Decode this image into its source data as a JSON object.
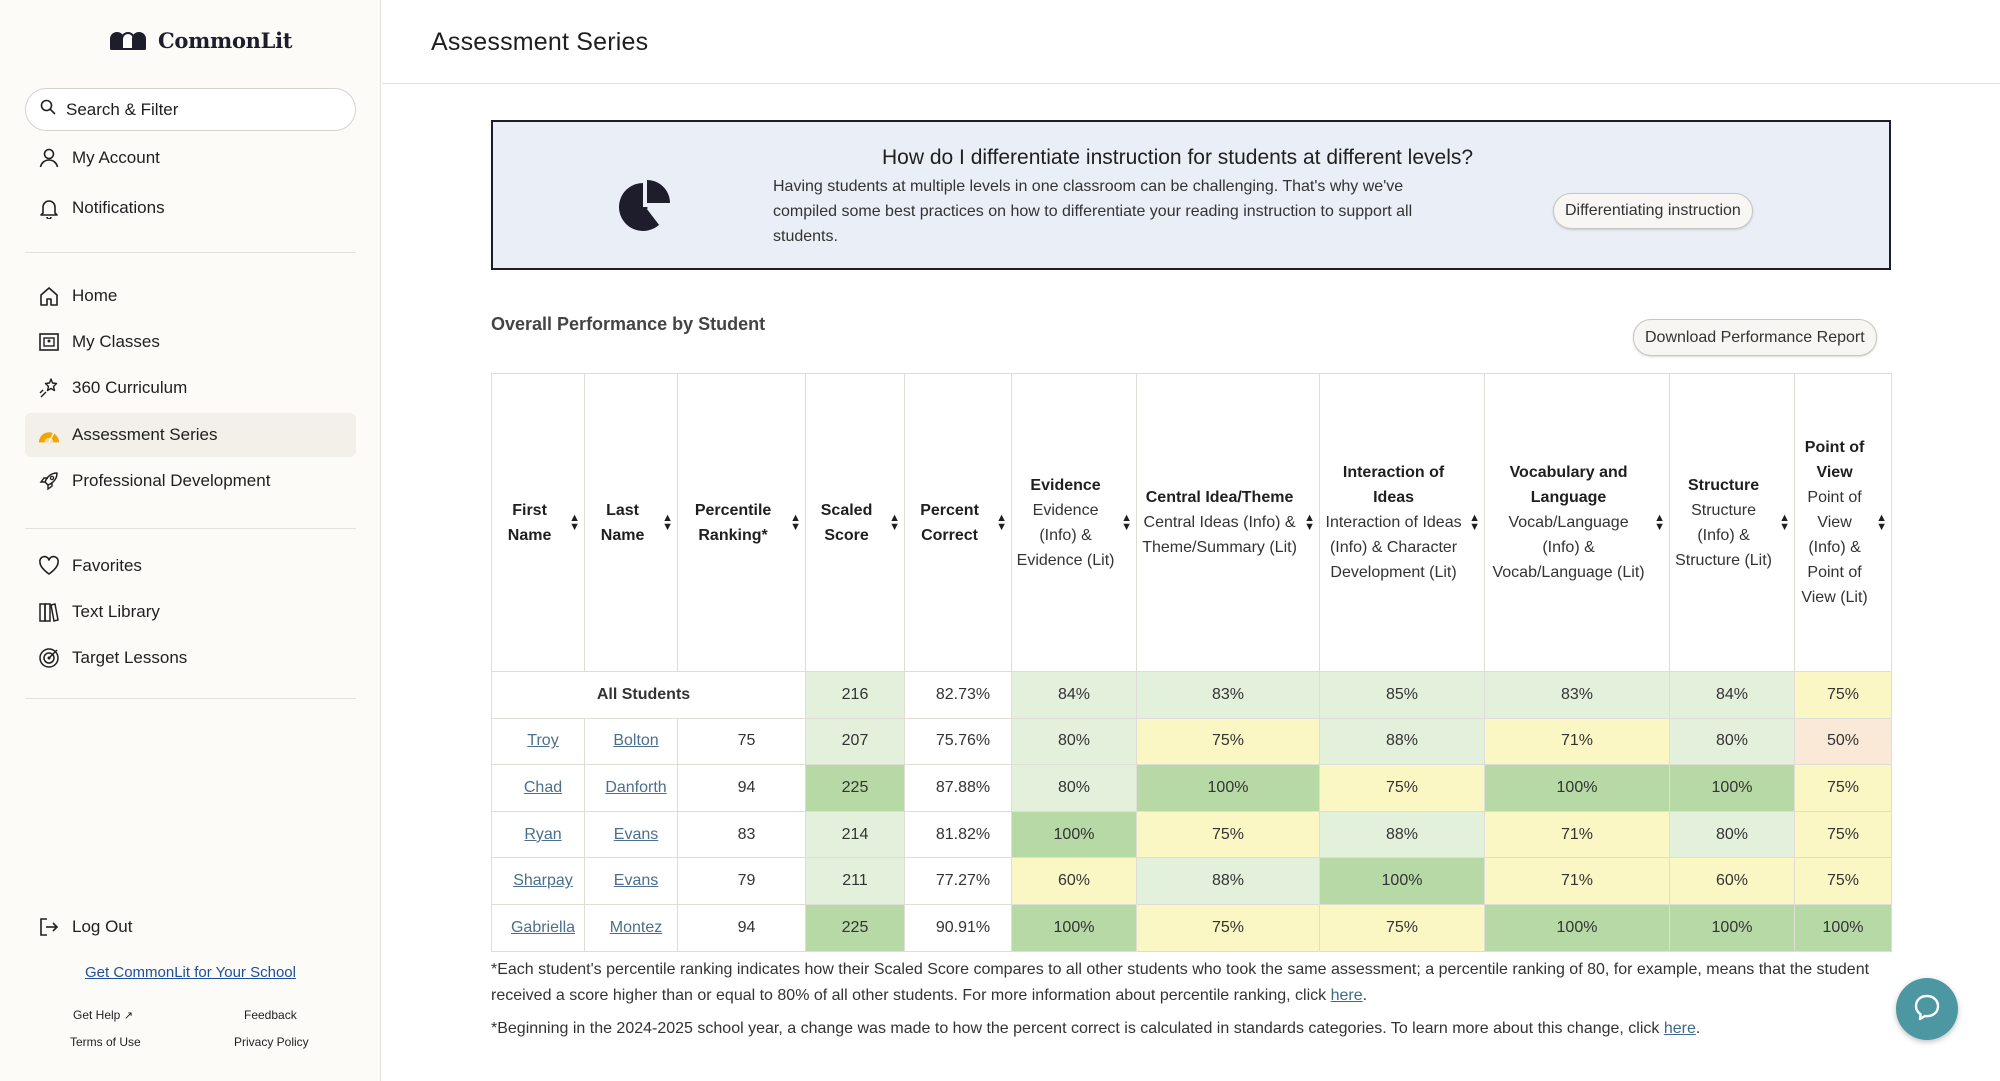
{
  "sidebar": {
    "logo_text": "CommonLit",
    "search_placeholder": "Search & Filter",
    "account_items": [
      {
        "label": "My Account",
        "icon": "user-icon"
      },
      {
        "label": "Notifications",
        "icon": "bell-icon"
      }
    ],
    "main_items": [
      {
        "label": "Home",
        "icon": "home-icon"
      },
      {
        "label": "My Classes",
        "icon": "classes-icon"
      },
      {
        "label": "360 Curriculum",
        "icon": "curriculum-icon"
      },
      {
        "label": "Assessment Series",
        "icon": "assessment-icon",
        "active": true
      },
      {
        "label": "Professional Development",
        "icon": "rocket-icon"
      }
    ],
    "library_items": [
      {
        "label": "Favorites",
        "icon": "heart-icon"
      },
      {
        "label": "Text Library",
        "icon": "books-icon"
      },
      {
        "label": "Target Lessons",
        "icon": "target-icon"
      }
    ],
    "logout_label": "Log Out",
    "get_commonlit": "Get CommonLit for Your School",
    "footer": {
      "get_help": "Get Help",
      "feedback": "Feedback",
      "terms": "Terms of Use",
      "privacy": "Privacy Policy"
    }
  },
  "header": {
    "title": "Assessment Series"
  },
  "banner": {
    "title": "How do I differentiate instruction for students at different levels?",
    "text": "Having students at multiple levels in one classroom can be challenging. That's why we've compiled some best practices on how to differentiate your reading instruction to support all students.",
    "button_label": "Differentiating instruction"
  },
  "performance": {
    "section_title": "Overall Performance by Student",
    "download_label": "Download Performance Report",
    "columns": [
      {
        "title": "First Name",
        "sub": ""
      },
      {
        "title": "Last Name",
        "sub": ""
      },
      {
        "title": "Percentile Ranking*",
        "sub": ""
      },
      {
        "title": "Scaled Score",
        "sub": ""
      },
      {
        "title": "Percent Correct",
        "sub": ""
      },
      {
        "title": "Evidence",
        "sub": "Evidence (Info) & Evidence (Lit)"
      },
      {
        "title": "Central Idea/Theme",
        "sub": "Central Ideas (Info) & Theme/Summary (Lit)"
      },
      {
        "title": "Interaction of Ideas",
        "sub": "Interaction of Ideas (Info) & Character Development (Lit)"
      },
      {
        "title": "Vocabulary and Language",
        "sub": "Vocab/Language (Info) & Vocab/Language (Lit)"
      },
      {
        "title": "Structure",
        "sub": "Structure (Info) & Structure (Lit)"
      },
      {
        "title": "Point of View",
        "sub": "Point of View (Info) & Point of View (Lit)"
      }
    ],
    "all_students": {
      "label": "All Students",
      "scaled": "216",
      "percent": "82.73%",
      "standards": [
        "84%",
        "83%",
        "85%",
        "83%",
        "84%",
        "75%"
      ]
    },
    "rows": [
      {
        "first": "Troy",
        "last": "Bolton",
        "percentile": "75",
        "scaled": "207",
        "percent": "75.76%",
        "standards": [
          "80%",
          "75%",
          "88%",
          "71%",
          "80%",
          "50%"
        ]
      },
      {
        "first": "Chad",
        "last": "Danforth",
        "percentile": "94",
        "scaled": "225",
        "percent": "87.88%",
        "standards": [
          "80%",
          "100%",
          "75%",
          "100%",
          "100%",
          "75%"
        ]
      },
      {
        "first": "Ryan",
        "last": "Evans",
        "percentile": "83",
        "scaled": "214",
        "percent": "81.82%",
        "standards": [
          "100%",
          "75%",
          "88%",
          "71%",
          "80%",
          "75%"
        ]
      },
      {
        "first": "Sharpay",
        "last": "Evans",
        "percentile": "79",
        "scaled": "211",
        "percent": "77.27%",
        "standards": [
          "60%",
          "88%",
          "100%",
          "71%",
          "60%",
          "75%"
        ]
      },
      {
        "first": "Gabriella",
        "last": "Montez",
        "percentile": "94",
        "scaled": "225",
        "percent": "90.91%",
        "standards": [
          "100%",
          "75%",
          "75%",
          "100%",
          "100%",
          "100%"
        ]
      }
    ],
    "colors": {
      "dark_green": "#b7d9a5",
      "light_green": "#e3f0dc",
      "yellow": "#fbf7c4",
      "orange": "#fbe9d8"
    }
  },
  "notes": {
    "note1": "*Each student's percentile ranking indicates how their Scaled Score compares to all other students who took the same assessment; a percentile ranking of 80, for example, means that the student received a score higher than or equal to 80% of all other students. For more information about percentile ranking, click ",
    "note2": "*Beginning in the 2024-2025 school year, a change was made to how the percent correct is calculated in standards categories. To learn more about this change, click ",
    "link_text": "here"
  }
}
